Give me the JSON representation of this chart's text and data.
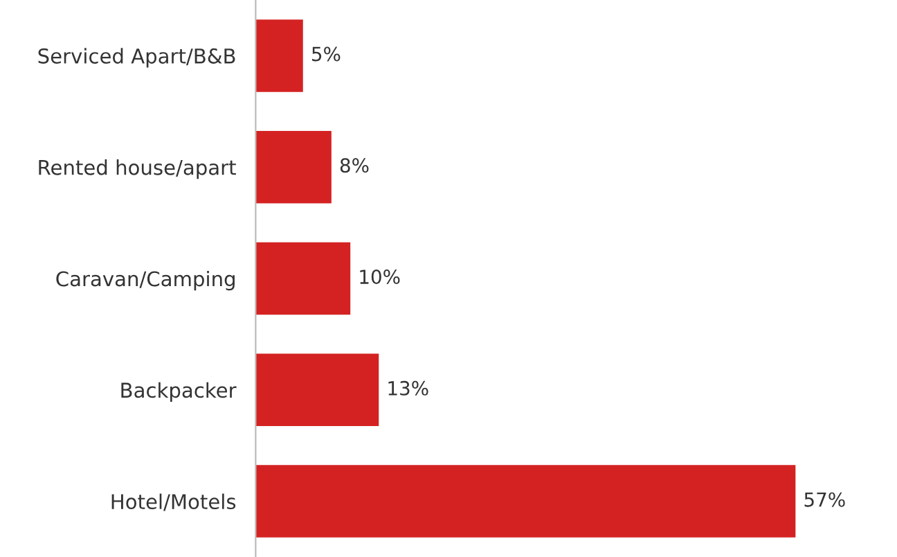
{
  "chart_data": {
    "type": "bar",
    "orientation": "horizontal",
    "categories": [
      "Serviced Apart/B&B",
      "Rented house/apart",
      "Caravan/Camping",
      "Backpacker",
      "Hotel/Motels"
    ],
    "values": [
      5,
      8,
      10,
      13,
      57
    ],
    "value_labels": [
      "5%",
      "8%",
      "10%",
      "13%",
      "57%"
    ],
    "color": "#d42222",
    "grid": false,
    "legend": false
  }
}
